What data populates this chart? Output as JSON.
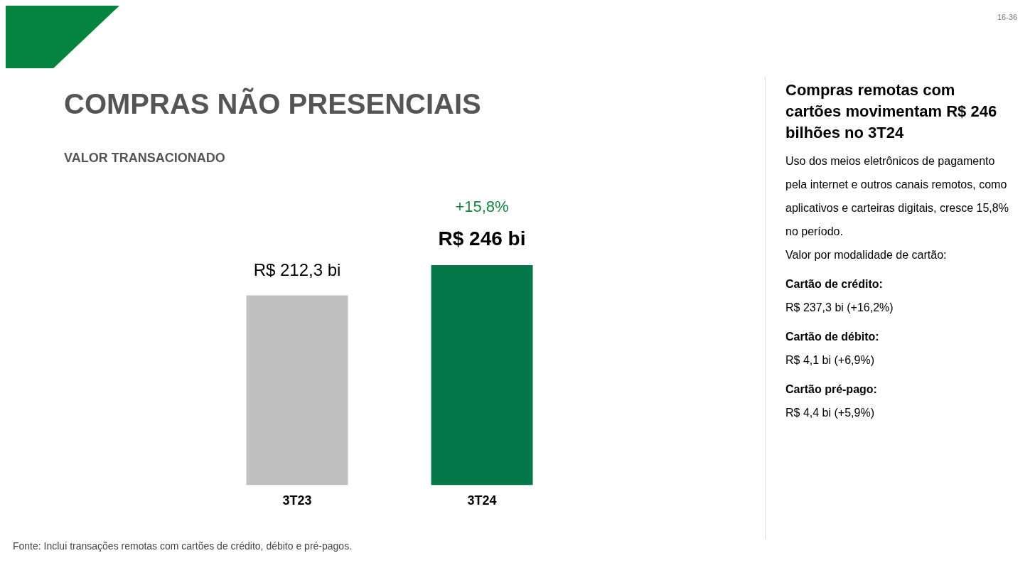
{
  "chart_data": [
    {
      "type": "bar",
      "title": "COMPRAS NÃO PRESENCIAIS",
      "subtitle": "VALOR TRANSACIONADO",
      "categories": [
        "3T23",
        "3T24"
      ],
      "values": [
        212.3,
        246
      ],
      "colors": [
        "#c0c0c0",
        "#05784a"
      ],
      "value_labels": [
        "R$ 212,3 bi",
        "R$ 246 bi"
      ],
      "grid": false,
      "legend": false,
      "annotations": [
        "+15,8%",
        "Fonte: Inclui transações remotas com cartões de crédito, débito e pré-pagos.",
        "16-36"
      ]
    },
    {
      "type": "other",
      "title": "Compras remotas com cartões movimentam R$ 246 bilhões no 3T24",
      "annotations": [
        "Uso dos meios eletrônicos de pagamento pela internet e outros canais remotos, como aplicativos e carteiras digitais, cresce 15,8% no período.",
        "Valor por modalidade de cartão:",
        "Cartão de crédito:",
        "R$ 237,3 bi (+16,2%)",
        "Cartão de débito:",
        "R$ 4,1 bi (+6,9%)",
        "Cartão pré-pago:",
        "R$ 4,4 bi (+5,9%)"
      ]
    }
  ]
}
